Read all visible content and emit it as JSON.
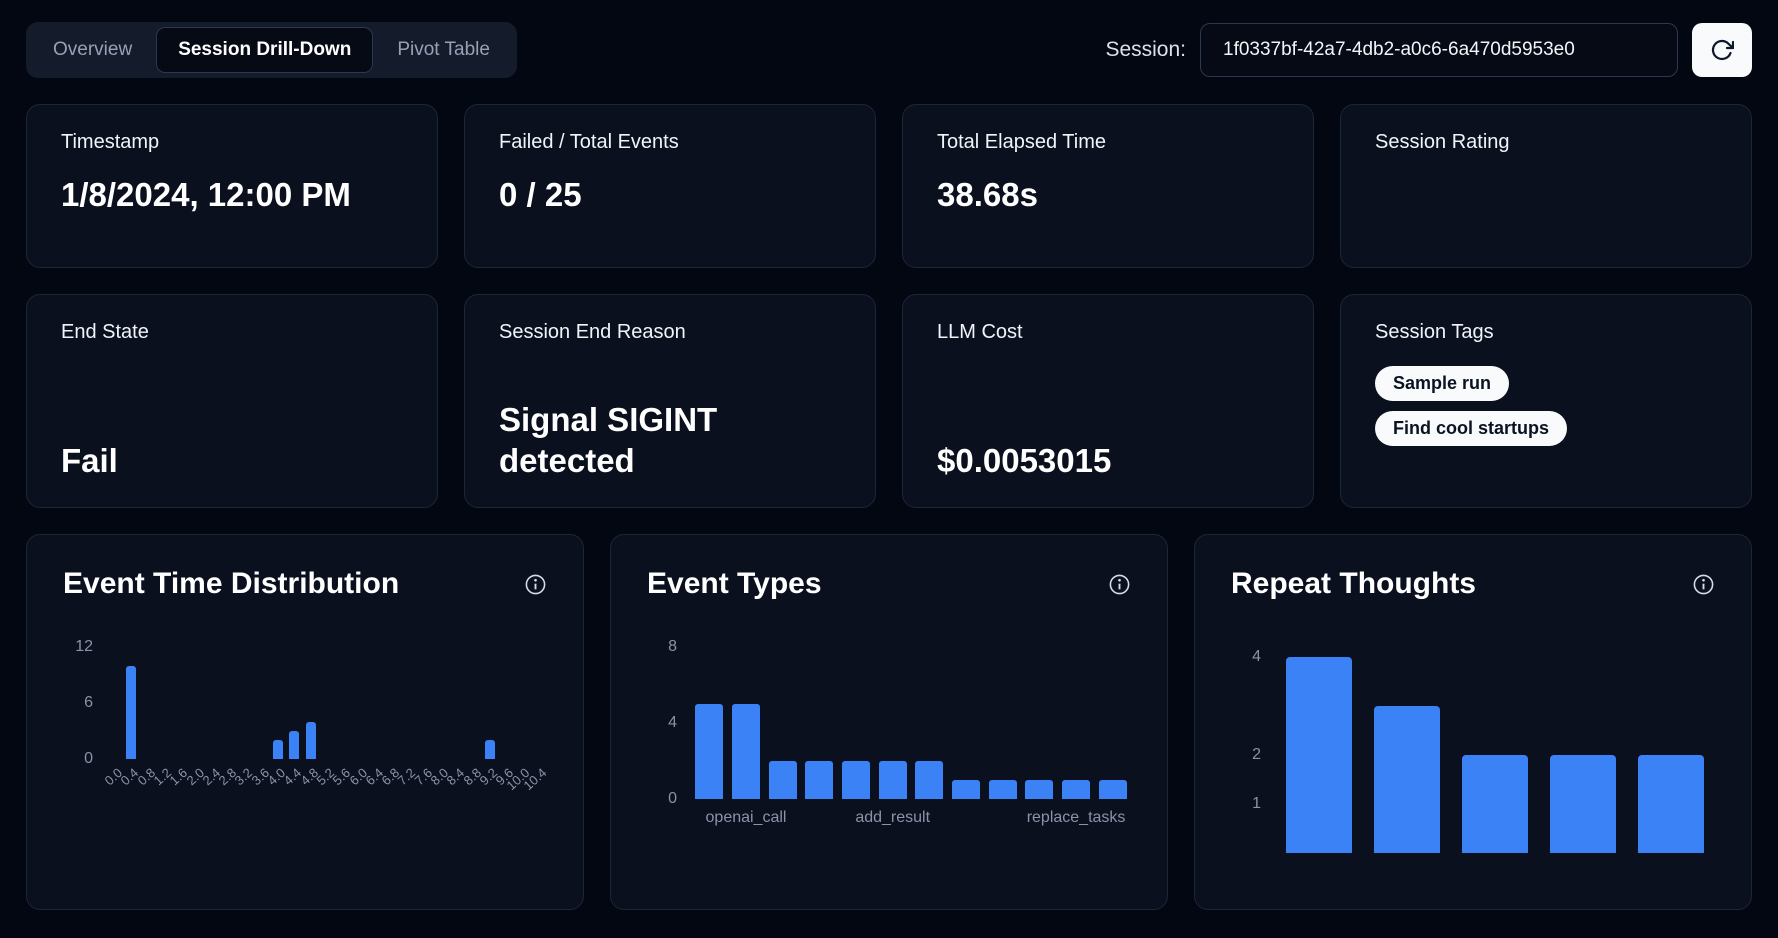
{
  "theme": {
    "background": "#030712",
    "card_background": "#0a101e",
    "card_border": "#1c2639",
    "accent": "#3b82f6",
    "muted_text": "#8a93a8",
    "pill_background": "#f8fafc",
    "pill_text": "#0b1322"
  },
  "header": {
    "tabs": [
      {
        "label": "Overview",
        "active": false
      },
      {
        "label": "Session Drill-Down",
        "active": true
      },
      {
        "label": "Pivot Table",
        "active": false
      }
    ],
    "session": {
      "label": "Session:",
      "value": "1f0337bf-42a7-4db2-a0c6-6a470d5953e0",
      "refresh_icon": "refresh-icon"
    }
  },
  "stats": [
    {
      "label": "Timestamp",
      "value": "1/8/2024, 12:00 PM"
    },
    {
      "label": "Failed / Total Events",
      "value": "0 / 25"
    },
    {
      "label": "Total Elapsed Time",
      "value": "38.68s"
    },
    {
      "label": "Session Rating",
      "value": ""
    },
    {
      "label": "End State",
      "value": "Fail"
    },
    {
      "label": "Session End Reason",
      "value": "Signal SIGINT detected"
    },
    {
      "label": "LLM Cost",
      "value": "$0.0053015"
    },
    {
      "label": "Session Tags",
      "tags": [
        "Sample run",
        "Find cool startups"
      ]
    }
  ],
  "chart_data": [
    {
      "type": "bar",
      "title": "Event Time Distribution",
      "info_icon": "info-icon",
      "ylabel": "",
      "xlabel": "",
      "ylim": [
        0,
        12
      ],
      "yticks": [
        12,
        6,
        0
      ],
      "grid": false,
      "legend": false,
      "xlabel_rotation": -45,
      "bar_color": "#3b82f6",
      "categories": [
        "0.0",
        "0.4",
        "0.8",
        "1.2",
        "1.6",
        "2.0",
        "2.4",
        "2.8",
        "3.2",
        "3.6",
        "4.0",
        "4.4",
        "4.8",
        "5.2",
        "5.6",
        "6.0",
        "6.4",
        "6.8",
        "7.2",
        "7.6",
        "8.0",
        "8.4",
        "8.8",
        "9.2",
        "9.6",
        "10.0",
        "10.4"
      ],
      "values": [
        0,
        10,
        0,
        0,
        0,
        0,
        0,
        0,
        0,
        0,
        2,
        3,
        4,
        0,
        0,
        0,
        0,
        0,
        0,
        0,
        0,
        0,
        0,
        2,
        0,
        0,
        0
      ]
    },
    {
      "type": "bar",
      "title": "Event Types",
      "info_icon": "info-icon",
      "ylabel": "",
      "xlabel": "",
      "ylim": [
        0,
        8
      ],
      "yticks": [
        8,
        4,
        0
      ],
      "grid": false,
      "legend": false,
      "xlabel_rotation": 0,
      "bar_color": "#3b82f6",
      "categories": [
        "",
        "openai_call",
        "",
        "",
        "",
        "add_result",
        "",
        "",
        "",
        "",
        "replace_tasks",
        ""
      ],
      "values": [
        5,
        5,
        2,
        2,
        2,
        2,
        2,
        1,
        1,
        1,
        1,
        1
      ]
    },
    {
      "type": "bar",
      "title": "Repeat Thoughts",
      "info_icon": "info-icon",
      "ylabel": "",
      "xlabel": "",
      "ylim": [
        0,
        4.2
      ],
      "yticks": [
        4,
        2,
        1
      ],
      "grid": false,
      "legend": false,
      "xlabel_rotation": 0,
      "bar_color": "#3b82f6",
      "categories": [
        "",
        "",
        "",
        "",
        ""
      ],
      "values": [
        4,
        3,
        2,
        2,
        2
      ]
    }
  ]
}
